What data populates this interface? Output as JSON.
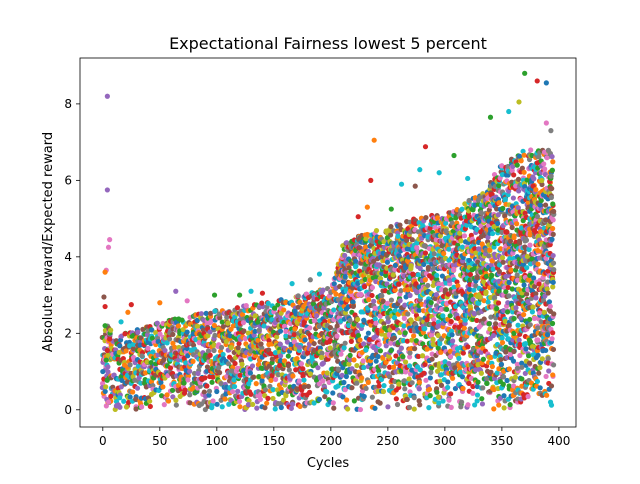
{
  "chart_data": {
    "type": "scatter",
    "title": "Expectational Fairness lowest 5 percent",
    "xlabel": "Cycles",
    "ylabel": "Absolute reward/Expected reward",
    "xlim": [
      -20,
      415
    ],
    "ylim": [
      -0.45,
      9.2
    ],
    "xticks": [
      0,
      50,
      100,
      150,
      200,
      250,
      300,
      350,
      400
    ],
    "yticks": [
      0,
      2,
      4,
      6,
      8
    ],
    "grid": false,
    "legend": "none",
    "marker_size_px": 2.6,
    "palette": [
      "#1f77b4",
      "#ff7f0e",
      "#2ca02c",
      "#d62728",
      "#9467bd",
      "#8c564b",
      "#e377c2",
      "#7f7f7f",
      "#bcbd22",
      "#17becf"
    ],
    "envelope": {
      "x": [
        0,
        5,
        10,
        15,
        20,
        50,
        100,
        150,
        200,
        205,
        210,
        230,
        260,
        300,
        330,
        350,
        370,
        395
      ],
      "upper": [
        2.0,
        2.3,
        1.8,
        1.9,
        2.0,
        2.3,
        2.6,
        2.85,
        3.2,
        3.6,
        4.4,
        4.6,
        4.9,
        5.2,
        5.6,
        6.4,
        6.8,
        6.8
      ],
      "lower": [
        0.0,
        0.0,
        0.0,
        0.0,
        0.0,
        0.0,
        0.0,
        0.0,
        0.0,
        0.0,
        0.0,
        0.0,
        0.0,
        0.0,
        0.0,
        0.0,
        0.0,
        0.0
      ]
    },
    "outliers": [
      {
        "x": 4,
        "y": 8.2,
        "color": "#9467bd"
      },
      {
        "x": 4,
        "y": 5.75,
        "color": "#9467bd"
      },
      {
        "x": 6,
        "y": 4.45,
        "color": "#e377c2"
      },
      {
        "x": 5,
        "y": 4.25,
        "color": "#e377c2"
      },
      {
        "x": 3,
        "y": 3.65,
        "color": "#e377c2"
      },
      {
        "x": 2,
        "y": 3.6,
        "color": "#ff7f0e"
      },
      {
        "x": 0,
        "y": 1.0,
        "color": "#1f77b4"
      },
      {
        "x": 238,
        "y": 7.05,
        "color": "#ff7f0e"
      },
      {
        "x": 283,
        "y": 6.88,
        "color": "#d62728"
      },
      {
        "x": 370,
        "y": 8.8,
        "color": "#2ca02c"
      },
      {
        "x": 381,
        "y": 8.6,
        "color": "#d62728"
      },
      {
        "x": 389,
        "y": 8.55,
        "color": "#1f77b4"
      },
      {
        "x": 365,
        "y": 8.05,
        "color": "#bcbd22"
      },
      {
        "x": 356,
        "y": 7.8,
        "color": "#17becf"
      },
      {
        "x": 340,
        "y": 7.65,
        "color": "#2ca02c"
      },
      {
        "x": 389,
        "y": 7.5,
        "color": "#e377c2"
      },
      {
        "x": 393,
        "y": 7.3,
        "color": "#7f7f7f"
      },
      {
        "x": 235,
        "y": 6.0,
        "color": "#d62728"
      },
      {
        "x": 262,
        "y": 5.9,
        "color": "#17becf"
      },
      {
        "x": 278,
        "y": 6.28,
        "color": "#17becf"
      },
      {
        "x": 308,
        "y": 6.65,
        "color": "#2ca02c"
      },
      {
        "x": 320,
        "y": 6.05,
        "color": "#17becf"
      },
      {
        "x": 295,
        "y": 6.2,
        "color": "#17becf"
      },
      {
        "x": 274,
        "y": 5.85,
        "color": "#8c564b"
      },
      {
        "x": 224,
        "y": 5.05,
        "color": "#d62728"
      },
      {
        "x": 232,
        "y": 5.3,
        "color": "#ff7f0e"
      },
      {
        "x": 253,
        "y": 5.25,
        "color": "#2ca02c"
      },
      {
        "x": 190,
        "y": 3.55,
        "color": "#17becf"
      },
      {
        "x": 182,
        "y": 3.4,
        "color": "#7f7f7f"
      },
      {
        "x": 166,
        "y": 3.3,
        "color": "#17becf"
      },
      {
        "x": 130,
        "y": 3.1,
        "color": "#17becf"
      },
      {
        "x": 140,
        "y": 3.05,
        "color": "#d62728"
      },
      {
        "x": 120,
        "y": 3.0,
        "color": "#2ca02c"
      },
      {
        "x": 98,
        "y": 3.0,
        "color": "#2ca02c"
      },
      {
        "x": 64,
        "y": 3.1,
        "color": "#9467bd"
      },
      {
        "x": 74,
        "y": 2.85,
        "color": "#e377c2"
      },
      {
        "x": 50,
        "y": 2.8,
        "color": "#ff7f0e"
      },
      {
        "x": 25,
        "y": 2.75,
        "color": "#d62728"
      },
      {
        "x": 22,
        "y": 2.55,
        "color": "#ff7f0e"
      },
      {
        "x": 16,
        "y": 2.3,
        "color": "#17becf"
      },
      {
        "x": 6,
        "y": 1.85,
        "color": "#d62728"
      },
      {
        "x": 7,
        "y": 0.35,
        "color": "#d62728"
      },
      {
        "x": 5,
        "y": 0.2,
        "color": "#e377c2"
      },
      {
        "x": 3,
        "y": 1.3,
        "color": "#2ca02c"
      },
      {
        "x": 2,
        "y": 2.7,
        "color": "#d62728"
      },
      {
        "x": 1,
        "y": 2.95,
        "color": "#8c564b"
      },
      {
        "x": 2,
        "y": 2.2,
        "color": "#2ca02c"
      },
      {
        "x": 4,
        "y": 1.55,
        "color": "#d62728"
      }
    ]
  }
}
